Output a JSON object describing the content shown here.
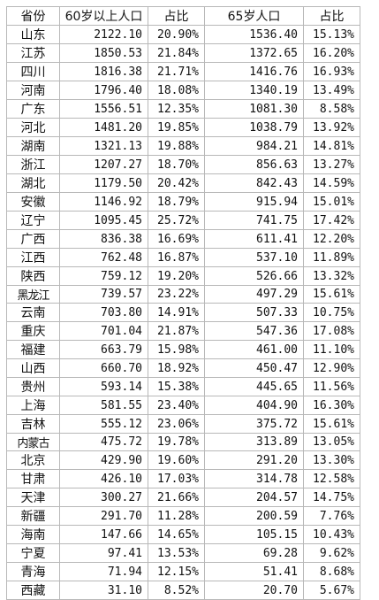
{
  "headers": [
    "省份",
    "60岁以上人口",
    "占比",
    "65岁人口",
    "占比"
  ],
  "rows": [
    [
      "山东",
      "2122.10",
      "20.90%",
      "1536.40",
      "15.13%"
    ],
    [
      "江苏",
      "1850.53",
      "21.84%",
      "1372.65",
      "16.20%"
    ],
    [
      "四川",
      "1816.38",
      "21.71%",
      "1416.76",
      "16.93%"
    ],
    [
      "河南",
      "1796.40",
      "18.08%",
      "1340.19",
      "13.49%"
    ],
    [
      "广东",
      "1556.51",
      "12.35%",
      "1081.30",
      "8.58%"
    ],
    [
      "河北",
      "1481.20",
      "19.85%",
      "1038.79",
      "13.92%"
    ],
    [
      "湖南",
      "1321.13",
      "19.88%",
      "984.21",
      "14.81%"
    ],
    [
      "浙江",
      "1207.27",
      "18.70%",
      "856.63",
      "13.27%"
    ],
    [
      "湖北",
      "1179.50",
      "20.42%",
      "842.43",
      "14.59%"
    ],
    [
      "安徽",
      "1146.92",
      "18.79%",
      "915.94",
      "15.01%"
    ],
    [
      "辽宁",
      "1095.45",
      "25.72%",
      "741.75",
      "17.42%"
    ],
    [
      "广西",
      "836.38",
      "16.69%",
      "611.41",
      "12.20%"
    ],
    [
      "江西",
      "762.48",
      "16.87%",
      "537.10",
      "11.89%"
    ],
    [
      "陕西",
      "759.12",
      "19.20%",
      "526.66",
      "13.32%"
    ],
    [
      "黑龙江",
      "739.57",
      "23.22%",
      "497.29",
      "15.61%"
    ],
    [
      "云南",
      "703.80",
      "14.91%",
      "507.33",
      "10.75%"
    ],
    [
      "重庆",
      "701.04",
      "21.87%",
      "547.36",
      "17.08%"
    ],
    [
      "福建",
      "663.79",
      "15.98%",
      "461.00",
      "11.10%"
    ],
    [
      "山西",
      "660.70",
      "18.92%",
      "450.47",
      "12.90%"
    ],
    [
      "贵州",
      "593.14",
      "15.38%",
      "445.65",
      "11.56%"
    ],
    [
      "上海",
      "581.55",
      "23.40%",
      "404.90",
      "16.30%"
    ],
    [
      "吉林",
      "555.12",
      "23.06%",
      "375.72",
      "15.61%"
    ],
    [
      "内蒙古",
      "475.72",
      "19.78%",
      "313.89",
      "13.05%"
    ],
    [
      "北京",
      "429.90",
      "19.60%",
      "291.20",
      "13.30%"
    ],
    [
      "甘肃",
      "426.10",
      "17.03%",
      "314.78",
      "12.58%"
    ],
    [
      "天津",
      "300.27",
      "21.66%",
      "204.57",
      "14.75%"
    ],
    [
      "新疆",
      "291.70",
      "11.28%",
      "200.59",
      "7.76%"
    ],
    [
      "海南",
      "147.66",
      "14.65%",
      "105.15",
      "10.43%"
    ],
    [
      "宁夏",
      "97.41",
      "13.53%",
      "69.28",
      "9.62%"
    ],
    [
      "青海",
      "71.94",
      "12.15%",
      "51.41",
      "8.68%"
    ],
    [
      "西藏",
      "31.10",
      "8.52%",
      "20.70",
      "5.67%"
    ]
  ]
}
